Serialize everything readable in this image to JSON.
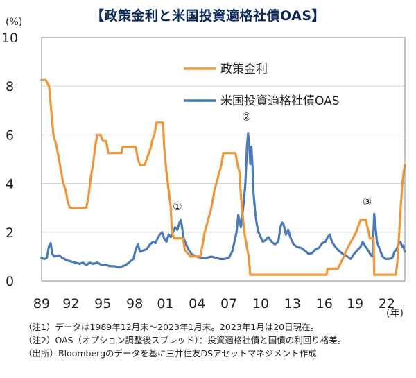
{
  "title": "【政策金利と米国投資適格社債OAS】",
  "chart_data": {
    "type": "line",
    "y_unit": "(%)",
    "x_unit": "(年)",
    "ylim": [
      0,
      10
    ],
    "y_ticks": [
      0,
      2,
      4,
      6,
      8,
      10
    ],
    "xlim": [
      1989.92,
      2023.05
    ],
    "x_ticks": [
      {
        "value": 1989.92,
        "label": "89"
      },
      {
        "value": 1992.6,
        "label": "92"
      },
      {
        "value": 1995.5,
        "label": "95"
      },
      {
        "value": 1998.4,
        "label": "98"
      },
      {
        "value": 2001.2,
        "label": "01"
      },
      {
        "value": 2004.1,
        "label": "04"
      },
      {
        "value": 2007.0,
        "label": "07"
      },
      {
        "value": 2009.9,
        "label": "10"
      },
      {
        "value": 2012.8,
        "label": "13"
      },
      {
        "value": 2015.7,
        "label": "16"
      },
      {
        "value": 2018.5,
        "label": "19"
      },
      {
        "value": 2021.4,
        "label": "22"
      }
    ],
    "grid": true,
    "legend_position": "top-right",
    "series": [
      {
        "name": "政策金利",
        "color": "#f0963a",
        "points": [
          [
            1989.9,
            8.25
          ],
          [
            1990.3,
            8.25
          ],
          [
            1990.6,
            8.0
          ],
          [
            1990.8,
            7.0
          ],
          [
            1991.0,
            6.0
          ],
          [
            1991.3,
            5.5
          ],
          [
            1991.5,
            5.0
          ],
          [
            1991.7,
            4.5
          ],
          [
            1991.9,
            4.0
          ],
          [
            1992.1,
            3.75
          ],
          [
            1992.3,
            3.25
          ],
          [
            1992.5,
            3.0
          ],
          [
            1993.5,
            3.0
          ],
          [
            1994.0,
            3.0
          ],
          [
            1994.2,
            3.5
          ],
          [
            1994.4,
            4.25
          ],
          [
            1994.6,
            4.75
          ],
          [
            1994.8,
            5.5
          ],
          [
            1995.0,
            6.0
          ],
          [
            1995.3,
            6.0
          ],
          [
            1995.5,
            5.75
          ],
          [
            1995.8,
            5.75
          ],
          [
            1996.0,
            5.25
          ],
          [
            1997.2,
            5.25
          ],
          [
            1997.3,
            5.5
          ],
          [
            1998.5,
            5.5
          ],
          [
            1998.7,
            5.0
          ],
          [
            1998.9,
            4.75
          ],
          [
            1999.3,
            4.75
          ],
          [
            1999.5,
            5.0
          ],
          [
            1999.7,
            5.25
          ],
          [
            1999.9,
            5.5
          ],
          [
            2000.0,
            5.75
          ],
          [
            2000.2,
            6.0
          ],
          [
            2000.4,
            6.5
          ],
          [
            2001.0,
            6.5
          ],
          [
            2001.1,
            5.5
          ],
          [
            2001.3,
            4.5
          ],
          [
            2001.5,
            3.75
          ],
          [
            2001.7,
            3.0
          ],
          [
            2001.8,
            2.0
          ],
          [
            2002.0,
            1.75
          ],
          [
            2002.8,
            1.75
          ],
          [
            2003.0,
            1.25
          ],
          [
            2003.5,
            1.0
          ],
          [
            2004.4,
            1.0
          ],
          [
            2004.6,
            1.5
          ],
          [
            2004.8,
            2.0
          ],
          [
            2005.1,
            2.5
          ],
          [
            2005.4,
            3.0
          ],
          [
            2005.7,
            3.75
          ],
          [
            2006.0,
            4.25
          ],
          [
            2006.3,
            4.75
          ],
          [
            2006.5,
            5.25
          ],
          [
            2007.6,
            5.25
          ],
          [
            2007.8,
            4.75
          ],
          [
            2007.95,
            4.5
          ],
          [
            2008.1,
            3.5
          ],
          [
            2008.2,
            3.0
          ],
          [
            2008.4,
            2.0
          ],
          [
            2008.8,
            1.0
          ],
          [
            2008.95,
            0.25
          ],
          [
            2015.9,
            0.25
          ],
          [
            2016.0,
            0.5
          ],
          [
            2016.95,
            0.5
          ],
          [
            2017.2,
            0.75
          ],
          [
            2017.5,
            1.0
          ],
          [
            2017.7,
            1.25
          ],
          [
            2018.0,
            1.5
          ],
          [
            2018.3,
            1.75
          ],
          [
            2018.6,
            2.0
          ],
          [
            2018.8,
            2.25
          ],
          [
            2019.0,
            2.5
          ],
          [
            2019.5,
            2.5
          ],
          [
            2019.6,
            2.25
          ],
          [
            2019.75,
            2.0
          ],
          [
            2019.85,
            1.75
          ],
          [
            2020.2,
            1.75
          ],
          [
            2020.25,
            0.25
          ],
          [
            2022.2,
            0.25
          ],
          [
            2022.3,
            0.5
          ],
          [
            2022.4,
            1.0
          ],
          [
            2022.5,
            1.75
          ],
          [
            2022.6,
            2.5
          ],
          [
            2022.7,
            3.25
          ],
          [
            2022.8,
            3.9
          ],
          [
            2022.95,
            4.5
          ],
          [
            2023.05,
            4.75
          ]
        ]
      },
      {
        "name": "米国投資適格社債OAS",
        "color": "#4a7bb7",
        "points": [
          [
            1989.9,
            0.95
          ],
          [
            1990.2,
            0.9
          ],
          [
            1990.4,
            0.95
          ],
          [
            1990.6,
            1.45
          ],
          [
            1990.75,
            1.55
          ],
          [
            1990.9,
            1.1
          ],
          [
            1991.1,
            1.0
          ],
          [
            1991.5,
            1.05
          ],
          [
            1991.8,
            0.95
          ],
          [
            1992.2,
            0.85
          ],
          [
            1992.6,
            0.8
          ],
          [
            1993.0,
            0.75
          ],
          [
            1993.4,
            0.7
          ],
          [
            1993.7,
            0.75
          ],
          [
            1994.0,
            0.65
          ],
          [
            1994.3,
            0.75
          ],
          [
            1994.6,
            0.7
          ],
          [
            1995.0,
            0.75
          ],
          [
            1995.4,
            0.65
          ],
          [
            1995.8,
            0.65
          ],
          [
            1996.2,
            0.6
          ],
          [
            1996.6,
            0.6
          ],
          [
            1997.0,
            0.55
          ],
          [
            1997.3,
            0.6
          ],
          [
            1997.6,
            0.65
          ],
          [
            1998.0,
            0.8
          ],
          [
            1998.3,
            0.9
          ],
          [
            1998.5,
            1.3
          ],
          [
            1998.7,
            1.5
          ],
          [
            1998.9,
            1.2
          ],
          [
            1999.2,
            1.25
          ],
          [
            1999.5,
            1.3
          ],
          [
            1999.8,
            1.5
          ],
          [
            2000.1,
            1.6
          ],
          [
            2000.3,
            1.55
          ],
          [
            2000.5,
            1.75
          ],
          [
            2000.7,
            1.9
          ],
          [
            2000.9,
            2.0
          ],
          [
            2001.1,
            1.75
          ],
          [
            2001.3,
            1.6
          ],
          [
            2001.5,
            1.9
          ],
          [
            2001.7,
            1.8
          ],
          [
            2001.9,
            2.0
          ],
          [
            2002.1,
            2.2
          ],
          [
            2002.3,
            2.1
          ],
          [
            2002.5,
            2.4
          ],
          [
            2002.6,
            2.5
          ],
          [
            2002.7,
            2.3
          ],
          [
            2002.85,
            1.8
          ],
          [
            2003.0,
            1.6
          ],
          [
            2003.3,
            1.3
          ],
          [
            2003.6,
            1.1
          ],
          [
            2004.0,
            1.0
          ],
          [
            2004.5,
            0.95
          ],
          [
            2005.0,
            0.95
          ],
          [
            2005.4,
            1.0
          ],
          [
            2005.8,
            0.95
          ],
          [
            2006.2,
            0.9
          ],
          [
            2006.6,
            0.9
          ],
          [
            2007.0,
            0.95
          ],
          [
            2007.3,
            1.2
          ],
          [
            2007.5,
            1.6
          ],
          [
            2007.7,
            2.0
          ],
          [
            2007.85,
            2.7
          ],
          [
            2007.95,
            2.5
          ],
          [
            2008.1,
            2.2
          ],
          [
            2008.2,
            2.6
          ],
          [
            2008.35,
            3.2
          ],
          [
            2008.5,
            4.0
          ],
          [
            2008.65,
            5.5
          ],
          [
            2008.75,
            6.05
          ],
          [
            2008.85,
            5.6
          ],
          [
            2008.95,
            4.8
          ],
          [
            2009.05,
            5.5
          ],
          [
            2009.15,
            4.7
          ],
          [
            2009.25,
            3.6
          ],
          [
            2009.4,
            2.8
          ],
          [
            2009.55,
            2.3
          ],
          [
            2009.7,
            2.0
          ],
          [
            2009.9,
            1.8
          ],
          [
            2010.1,
            1.6
          ],
          [
            2010.4,
            1.7
          ],
          [
            2010.6,
            1.8
          ],
          [
            2010.9,
            1.6
          ],
          [
            2011.2,
            1.5
          ],
          [
            2011.5,
            1.6
          ],
          [
            2011.7,
            2.2
          ],
          [
            2011.85,
            2.4
          ],
          [
            2012.0,
            2.3
          ],
          [
            2012.2,
            1.9
          ],
          [
            2012.4,
            2.1
          ],
          [
            2012.6,
            1.8
          ],
          [
            2012.9,
            1.5
          ],
          [
            2013.2,
            1.4
          ],
          [
            2013.6,
            1.35
          ],
          [
            2013.9,
            1.25
          ],
          [
            2014.3,
            1.1
          ],
          [
            2014.6,
            1.15
          ],
          [
            2014.9,
            1.3
          ],
          [
            2015.2,
            1.35
          ],
          [
            2015.5,
            1.55
          ],
          [
            2015.8,
            1.6
          ],
          [
            2016.0,
            1.8
          ],
          [
            2016.2,
            1.9
          ],
          [
            2016.4,
            1.6
          ],
          [
            2016.7,
            1.4
          ],
          [
            2017.0,
            1.25
          ],
          [
            2017.4,
            1.1
          ],
          [
            2017.8,
            1.0
          ],
          [
            2018.1,
            0.9
          ],
          [
            2018.4,
            1.1
          ],
          [
            2018.7,
            1.25
          ],
          [
            2019.0,
            1.4
          ],
          [
            2019.2,
            1.6
          ],
          [
            2019.4,
            1.45
          ],
          [
            2019.7,
            1.25
          ],
          [
            2019.95,
            1.05
          ],
          [
            2020.1,
            1.0
          ],
          [
            2020.15,
            1.6
          ],
          [
            2020.25,
            2.75
          ],
          [
            2020.35,
            2.3
          ],
          [
            2020.5,
            1.6
          ],
          [
            2020.8,
            1.25
          ],
          [
            2021.0,
            1.0
          ],
          [
            2021.3,
            0.9
          ],
          [
            2021.6,
            0.9
          ],
          [
            2021.9,
            0.95
          ],
          [
            2022.1,
            1.2
          ],
          [
            2022.3,
            1.3
          ],
          [
            2022.5,
            1.55
          ],
          [
            2022.65,
            1.6
          ],
          [
            2022.8,
            1.4
          ],
          [
            2022.9,
            1.45
          ],
          [
            2023.05,
            1.2
          ]
        ]
      }
    ],
    "annotations": [
      {
        "label": "①",
        "x": 2002.3,
        "y": 2.9
      },
      {
        "label": "②",
        "x": 2008.6,
        "y": 6.6
      },
      {
        "label": "③",
        "x": 2019.6,
        "y": 3.1
      }
    ]
  },
  "notes": [
    "（注1）データは1989年12月末～2023年1月末。2023年1月は20日現在。",
    "（注2）OAS（オプション調整後スプレッド）：投資適格社債と国債の利回り格差。",
    "（出所）Bloombergのデータを基に三井住友DSアセットマネジメント作成"
  ]
}
